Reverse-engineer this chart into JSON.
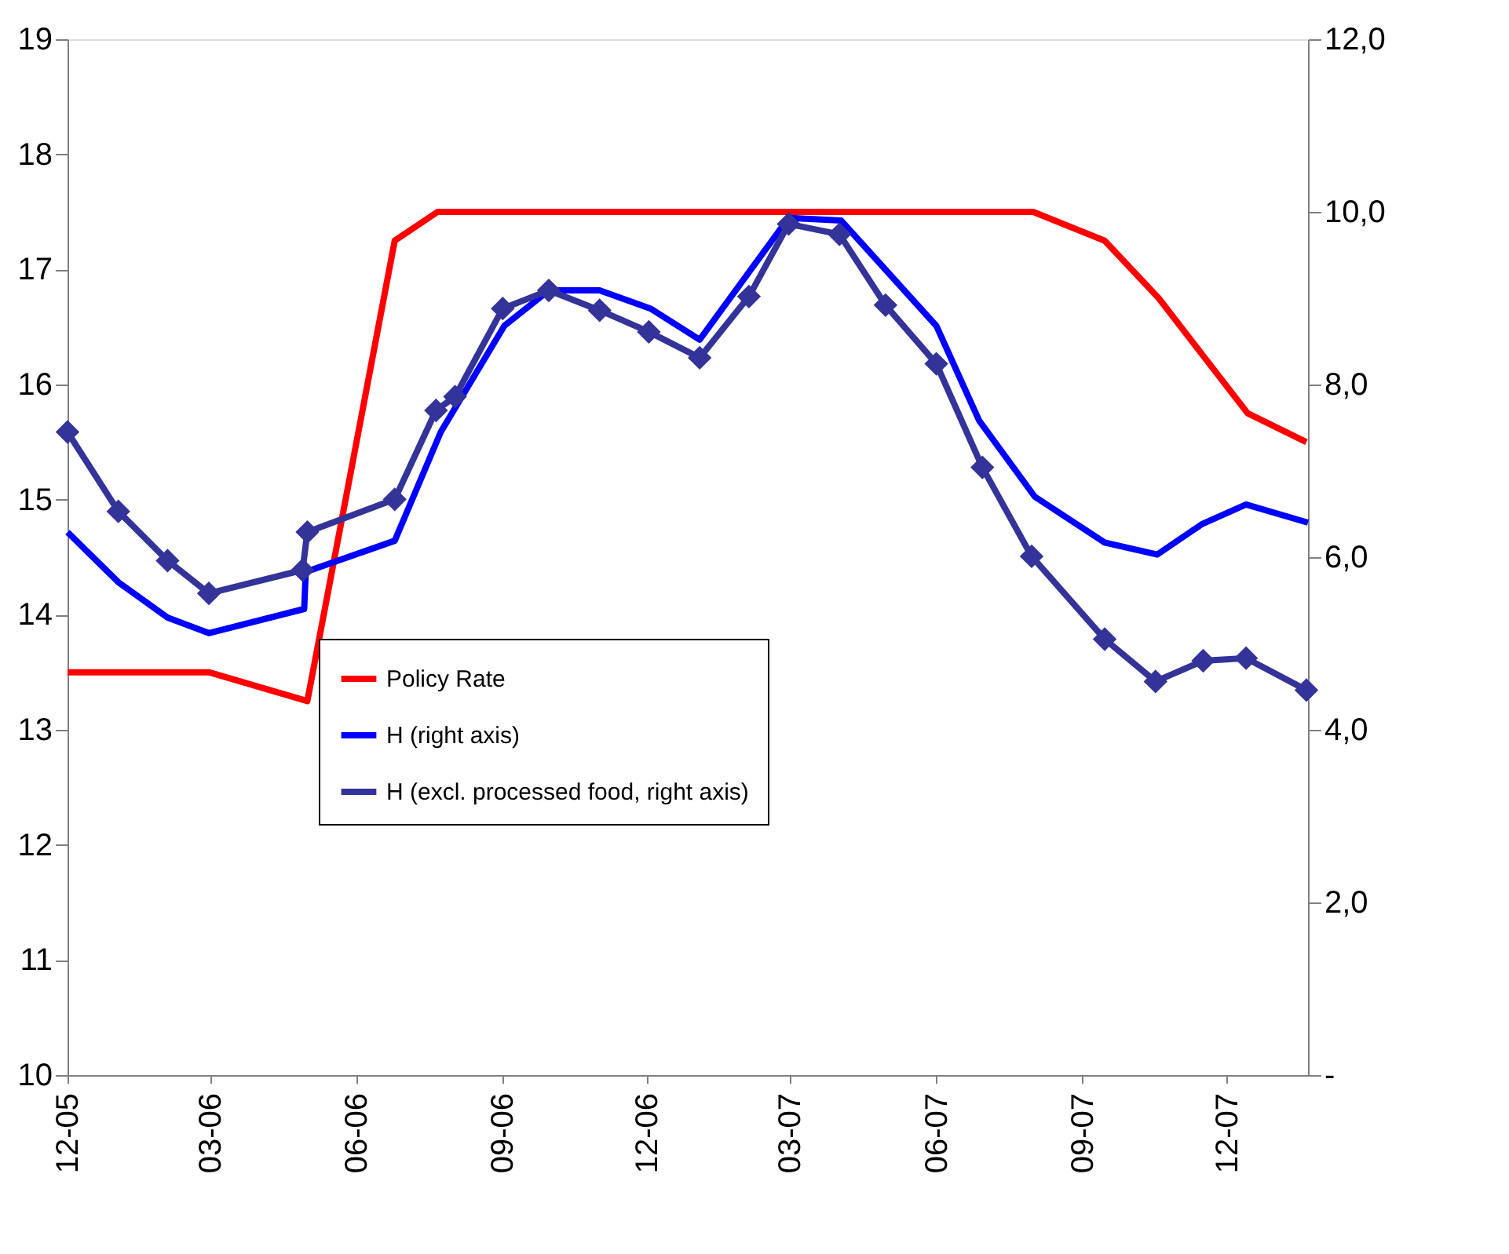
{
  "chart_data": {
    "type": "line",
    "xlim": [
      "2005-12-01",
      "2008-01-21"
    ],
    "xticks": [
      {
        "value": "2005-12-01",
        "label": "12-05"
      },
      {
        "value": "2006-03-01",
        "label": "03-06"
      },
      {
        "value": "2006-06-01",
        "label": "06-06"
      },
      {
        "value": "2006-09-01",
        "label": "09-06"
      },
      {
        "value": "2006-12-01",
        "label": "12-06"
      },
      {
        "value": "2007-03-01",
        "label": "03-07"
      },
      {
        "value": "2007-06-01",
        "label": "06-07"
      },
      {
        "value": "2007-09-01",
        "label": "09-07"
      },
      {
        "value": "2007-12-01",
        "label": "12-07"
      }
    ],
    "ylim": [
      10,
      19
    ],
    "yticks": [
      10,
      11,
      12,
      13,
      14,
      15,
      16,
      17,
      18,
      19
    ],
    "y2lim": [
      0,
      12
    ],
    "y2ticks": [
      {
        "value": 0,
        "label": "-"
      },
      {
        "value": 2,
        "label": "2,0"
      },
      {
        "value": 4,
        "label": "4,0"
      },
      {
        "value": 6,
        "label": "6,0"
      },
      {
        "value": 8,
        "label": "8,0"
      },
      {
        "value": 10,
        "label": "10,0"
      },
      {
        "value": 12,
        "label": "12,0"
      }
    ],
    "grid": false,
    "legend": "bottom left",
    "line_style": "solid",
    "series": [
      {
        "name": "Policy Rate",
        "color": "#ff0000",
        "marker": "none",
        "x": [
          "2005-12-01",
          "2006-02-28",
          "2006-05-01",
          "2006-06-25",
          "2006-07-22",
          "2007-08-01",
          "2007-09-15",
          "2007-10-19",
          "2007-11-16",
          "2007-12-14",
          "2008-01-20"
        ],
        "values": [
          13.5,
          13.5,
          13.25,
          17.25,
          17.5,
          17.5,
          17.25,
          16.75,
          16.25,
          15.75,
          15.5
        ]
      },
      {
        "name": "H (right axis)",
        "color": "#0000ff",
        "marker": "none",
        "axis": "y2",
        "x": [
          "2005-12-01",
          "2006-01-02",
          "2006-02-02",
          "2006-02-28",
          "2006-04-29",
          "2006-04-30",
          "2006-06-25",
          "2006-07-24",
          "2006-09-02",
          "2006-09-30",
          "2006-11-01",
          "2006-12-03",
          "2007-01-03",
          "2007-02-28",
          "2007-04-02",
          "2007-06-01",
          "2007-06-28",
          "2007-08-02",
          "2007-09-15",
          "2007-10-18",
          "2007-11-15",
          "2007-12-13",
          "2008-01-21"
        ],
        "values": [
          6.29,
          5.71,
          5.3,
          5.12,
          5.4,
          5.83,
          6.19,
          7.45,
          8.68,
          9.09,
          9.09,
          8.88,
          8.52,
          9.93,
          9.9,
          8.68,
          7.58,
          6.7,
          6.17,
          6.03,
          6.38,
          6.61,
          6.4
        ]
      },
      {
        "name": "H (excl. processed food, right axis)",
        "color": "#333399",
        "marker": "diamond",
        "axis": "y2",
        "x": [
          "2005-12-01",
          "2006-01-02",
          "2006-02-02",
          "2006-02-28",
          "2006-04-28",
          "2006-05-01",
          "2006-06-25",
          "2006-07-21",
          "2006-08-02",
          "2006-09-01",
          "2006-09-30",
          "2006-11-01",
          "2006-12-02",
          "2007-01-03",
          "2007-02-03",
          "2007-02-28",
          "2007-04-01",
          "2007-04-30",
          "2007-06-01",
          "2007-06-30",
          "2007-07-31",
          "2007-09-15",
          "2007-10-17",
          "2007-11-16",
          "2007-12-13",
          "2008-01-20"
        ],
        "values": [
          7.45,
          6.53,
          5.96,
          5.58,
          5.85,
          6.29,
          6.67,
          7.7,
          7.86,
          8.88,
          9.09,
          8.86,
          8.61,
          8.31,
          9.02,
          9.86,
          9.74,
          8.92,
          8.24,
          7.04,
          6.01,
          5.05,
          4.56,
          4.8,
          4.83,
          4.46
        ]
      }
    ]
  }
}
